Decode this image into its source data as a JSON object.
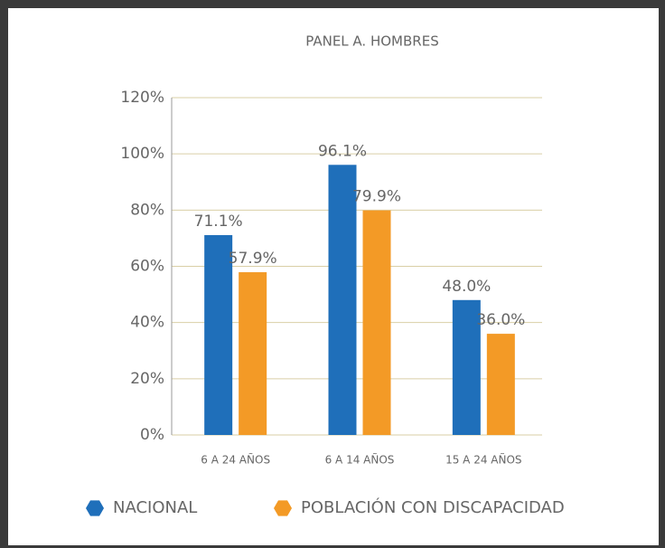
{
  "chart_data": {
    "type": "bar",
    "title": "PANEL A. HOMBRES",
    "categories": [
      "6 A 24 AÑOS",
      "6 A 14 AÑOS",
      "15 A 24 AÑOS"
    ],
    "series": [
      {
        "name": "NACIONAL",
        "color": "#1f6fba",
        "values": [
          71.1,
          96.1,
          48.0
        ],
        "value_labels": [
          "71.1%",
          "96.1%",
          "48.0%"
        ]
      },
      {
        "name": "POBLACIÓN CON DISCAPACIDAD",
        "color": "#f39a26",
        "values": [
          57.9,
          79.9,
          36.0
        ],
        "value_labels": [
          "57.9%",
          "79.9%",
          "36.0%"
        ]
      }
    ],
    "ylim": [
      0,
      120
    ],
    "yticks": [
      {
        "value": 0,
        "label": "0%"
      },
      {
        "value": 20,
        "label": "20%"
      },
      {
        "value": 40,
        "label": "40%"
      },
      {
        "value": 60,
        "label": "60%"
      },
      {
        "value": 80,
        "label": "80%"
      },
      {
        "value": 100,
        "label": "100%"
      },
      {
        "value": 120,
        "label": "120%"
      }
    ],
    "grid": true,
    "legend": "bottom"
  }
}
